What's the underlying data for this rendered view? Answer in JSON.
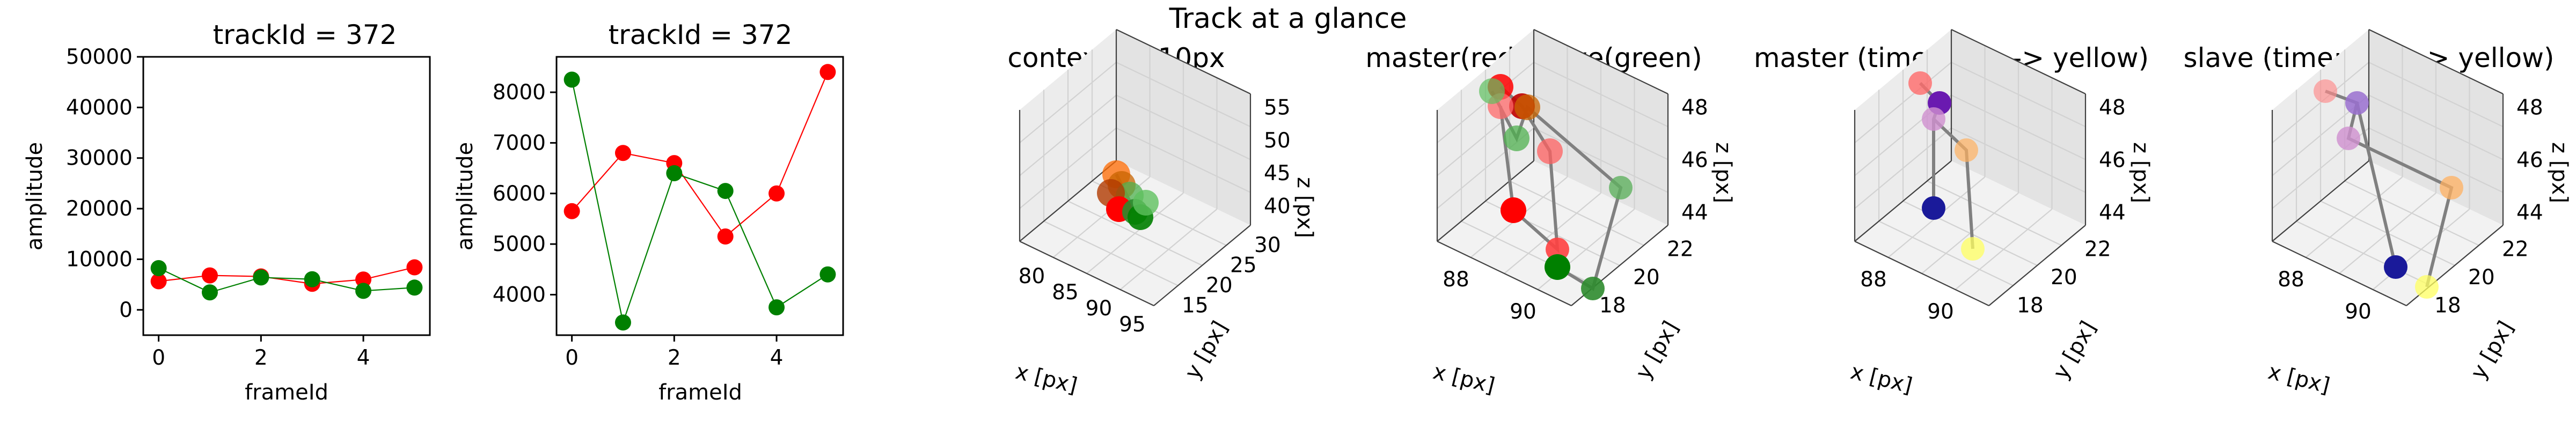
{
  "figure": {
    "suptitle": "Track at a glance"
  },
  "chart_data": [
    {
      "type": "line",
      "title": "trackId = 372",
      "xlabel": "frameId",
      "ylabel": "amplitude",
      "x": [
        0,
        1,
        2,
        3,
        4,
        5
      ],
      "xticks": [
        "0",
        "2",
        "4"
      ],
      "yticks": [
        "0",
        "10000",
        "20000",
        "30000",
        "40000",
        "50000"
      ],
      "ylim": [
        -5000,
        50000
      ],
      "series": [
        {
          "color": "#ff0000",
          "values": [
            5650,
            6800,
            6600,
            5150,
            6000,
            8400
          ]
        },
        {
          "color": "#008000",
          "values": [
            8250,
            3450,
            6400,
            6050,
            3750,
            4400
          ]
        }
      ]
    },
    {
      "type": "line",
      "title": "trackId = 372",
      "xlabel": "frameId",
      "ylabel": "amplitude",
      "x": [
        0,
        1,
        2,
        3,
        4,
        5
      ],
      "xticks": [
        "0",
        "2",
        "4"
      ],
      "yticks": [
        "4000",
        "5000",
        "6000",
        "7000",
        "8000"
      ],
      "ylim": [
        3200,
        8700
      ],
      "series": [
        {
          "color": "#ff0000",
          "values": [
            5650,
            6800,
            6600,
            5150,
            6000,
            8400
          ]
        },
        {
          "color": "#008000",
          "values": [
            8250,
            3450,
            6400,
            6050,
            3750,
            4400
          ]
        }
      ]
    },
    {
      "type": "scatter",
      "title": "context +- 10px",
      "xlabel": "x [px]",
      "ylabel": "y [px]",
      "zlabel": "z [px]",
      "xticks": [
        "80",
        "85",
        "90",
        "95"
      ],
      "yticks": [
        "15",
        "20",
        "25",
        "30"
      ],
      "zticks": [
        "40",
        "45",
        "50",
        "55"
      ]
    },
    {
      "type": "scatter",
      "title": "master(red) slave(green)",
      "xlabel": "x [px]",
      "ylabel": "y [px]",
      "zlabel": "z [px]",
      "xticks": [
        "88",
        "90"
      ],
      "yticks": [
        "18",
        "20",
        "22"
      ],
      "zticks": [
        "44",
        "46",
        "48"
      ]
    },
    {
      "type": "scatter",
      "title": "master (time: blue -> yellow)",
      "xlabel": "x [px]",
      "ylabel": "y [px]",
      "zlabel": "z [px]",
      "xticks": [
        "88",
        "90"
      ],
      "yticks": [
        "18",
        "20",
        "22"
      ],
      "zticks": [
        "44",
        "46",
        "48"
      ]
    },
    {
      "type": "scatter",
      "title": "slave (time: blue -> yellow)",
      "xlabel": "x [px]",
      "ylabel": "y [px]",
      "zlabel": "z [px]",
      "xticks": [
        "88",
        "90"
      ],
      "yticks": [
        "18",
        "20",
        "22"
      ],
      "zticks": [
        "44",
        "46",
        "48"
      ]
    }
  ]
}
